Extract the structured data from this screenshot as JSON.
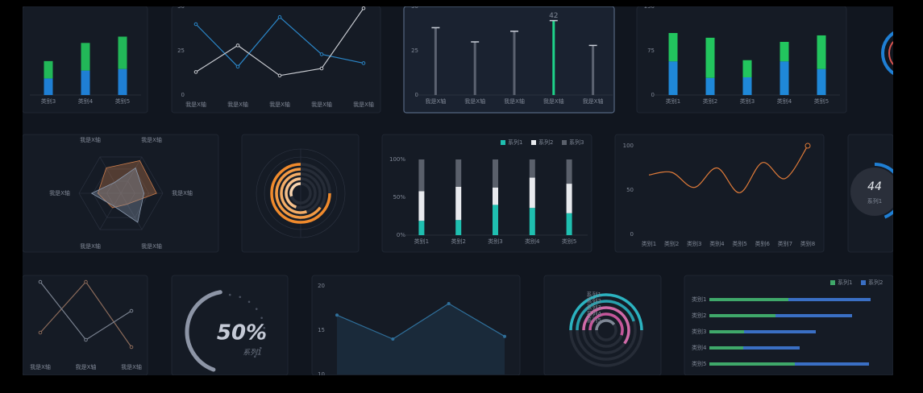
{
  "chart_data": [
    {
      "type": "stacked-bar",
      "categories": [
        "类别3",
        "类别4",
        "类别5"
      ],
      "ylim": [
        0,
        100
      ],
      "series": [
        {
          "color": "#1f7fd4",
          "values": [
            21,
            31,
            33
          ]
        },
        {
          "color": "#22b858",
          "values": [
            22,
            35,
            41
          ]
        }
      ]
    },
    {
      "type": "line",
      "categories": [
        "我是X轴",
        "我是X轴",
        "我是X轴",
        "我是X轴",
        "我是X轴"
      ],
      "ylim": [
        0,
        50
      ],
      "yticks": [
        0,
        25,
        50
      ],
      "series": [
        {
          "color": "#2b87c9",
          "values": [
            40,
            16,
            44,
            23,
            18
          ]
        },
        {
          "color": "#c9ccd2",
          "values": [
            13,
            28,
            11,
            15,
            49
          ]
        }
      ]
    },
    {
      "type": "lollipop",
      "categories": [
        "我是X轴",
        "我是X轴",
        "我是X轴",
        "我是X轴",
        "我是X轴"
      ],
      "ylim": [
        0,
        50
      ],
      "yticks": [
        0,
        25,
        50
      ],
      "values": [
        38,
        30,
        36,
        42,
        28
      ],
      "value_labels": [
        null,
        null,
        null,
        "42",
        null
      ],
      "colors": [
        "#5b6270",
        "#5b6270",
        "#5b6270",
        "#1ed48a",
        "#5b6270"
      ]
    },
    {
      "type": "stacked-bar",
      "categories": [
        "类别1",
        "类别2",
        "类别3",
        "类别4",
        "类别5"
      ],
      "ylim": [
        0,
        150
      ],
      "yticks": [
        0,
        75,
        150
      ],
      "series": [
        {
          "color": "#1f88d8",
          "values": [
            57,
            29,
            30,
            57,
            44
          ]
        },
        {
          "color": "#22c55e",
          "values": [
            48,
            68,
            29,
            33,
            57
          ]
        }
      ]
    },
    {
      "type": "radar",
      "categories": [
        "我是X轴",
        "我是X轴",
        "我是X轴",
        "我是X轴",
        "我是X轴",
        "我是X轴"
      ],
      "rlim": [
        0,
        100
      ],
      "series": [
        {
          "color": "#c77a4a",
          "values": [
            90,
            85,
            30,
            40,
            55,
            70
          ]
        },
        {
          "color": "#8c9bb0",
          "values": [
            70,
            55,
            80,
            35,
            70,
            30
          ]
        }
      ]
    },
    {
      "type": "radial-bar",
      "vlim": [
        0,
        100
      ],
      "values": [
        75,
        65,
        55,
        45,
        30
      ],
      "colors": [
        "#f08a2c",
        "#f29a44",
        "#f4ad66",
        "#f6c08a",
        "#f8d4ae"
      ]
    },
    {
      "type": "stacked-bar",
      "categories": [
        "类别1",
        "类别2",
        "类别3",
        "类别4",
        "类别5"
      ],
      "ylim": [
        0,
        100
      ],
      "yticks": [
        {
          "value": 0,
          "label": "0%"
        },
        {
          "value": 50,
          "label": "50%"
        },
        {
          "value": 100,
          "label": "100%"
        }
      ],
      "legend": "top-right",
      "series": [
        {
          "name": "系列1",
          "color": "#1fbfb0",
          "values": [
            19,
            20,
            40,
            36,
            29
          ]
        },
        {
          "name": "系列2",
          "color": "#e8eaee",
          "values": [
            39,
            44,
            23,
            40,
            39
          ]
        },
        {
          "name": "系列3",
          "color": "#5a606b",
          "values": [
            42,
            36,
            37,
            24,
            32
          ]
        }
      ]
    },
    {
      "type": "line",
      "smooth": true,
      "categories": [
        "类别1",
        "类别2",
        "类别3",
        "类别4",
        "类别5",
        "类别6",
        "类别7",
        "类别8"
      ],
      "ylim": [
        0,
        100
      ],
      "yticks": [
        0,
        50,
        100
      ],
      "series": [
        {
          "color": "#e07b39",
          "values": [
            67,
            70,
            53,
            75,
            47,
            81,
            63,
            100
          ]
        }
      ]
    },
    {
      "type": "gauge",
      "name": "系列1",
      "value": 44,
      "vlim": [
        0,
        100
      ],
      "color": "#1f7fd4"
    },
    {
      "type": "line",
      "categories": [
        "我是X轴",
        "我是X轴",
        "我是X轴"
      ],
      "ylim": [
        0,
        100
      ],
      "series": [
        {
          "color": "#8a6a5a",
          "values": [
            30,
            100,
            10
          ]
        },
        {
          "color": "#7a8290",
          "values": [
            100,
            20,
            60
          ]
        }
      ]
    },
    {
      "type": "gauge",
      "name": "系列1",
      "value": 50,
      "value_label": "50%",
      "vlim": [
        0,
        100
      ],
      "color": "#8d95a6"
    },
    {
      "type": "area",
      "ylim": [
        10,
        20
      ],
      "yticks": [
        10,
        15,
        20
      ],
      "color": "#2f6f9a",
      "values": [
        16.7,
        14,
        18,
        14.3
      ]
    },
    {
      "type": "radial-bar",
      "vlim": [
        0,
        100
      ],
      "categories": [
        "系列1",
        "系列2",
        "系列3",
        "系列4",
        "系列5"
      ],
      "values": [
        50,
        45,
        60,
        55,
        40
      ],
      "colors": [
        "#2bb3c0",
        "#27a0ad",
        "#d06aa8",
        "#c4569a",
        "#7f8795"
      ]
    },
    {
      "type": "horizontal-stacked-bar",
      "categories": [
        "类别1",
        "类别2",
        "类别3",
        "类别4",
        "类别5"
      ],
      "xlim": [
        0,
        220
      ],
      "legend": "top-right",
      "series": [
        {
          "name": "系列1",
          "color": "#3fa86a",
          "values": [
            98,
            82,
            43,
            42,
            106
          ]
        },
        {
          "name": "系列2",
          "color": "#3a6fc4",
          "values": [
            102,
            95,
            89,
            70,
            92
          ]
        }
      ]
    }
  ]
}
